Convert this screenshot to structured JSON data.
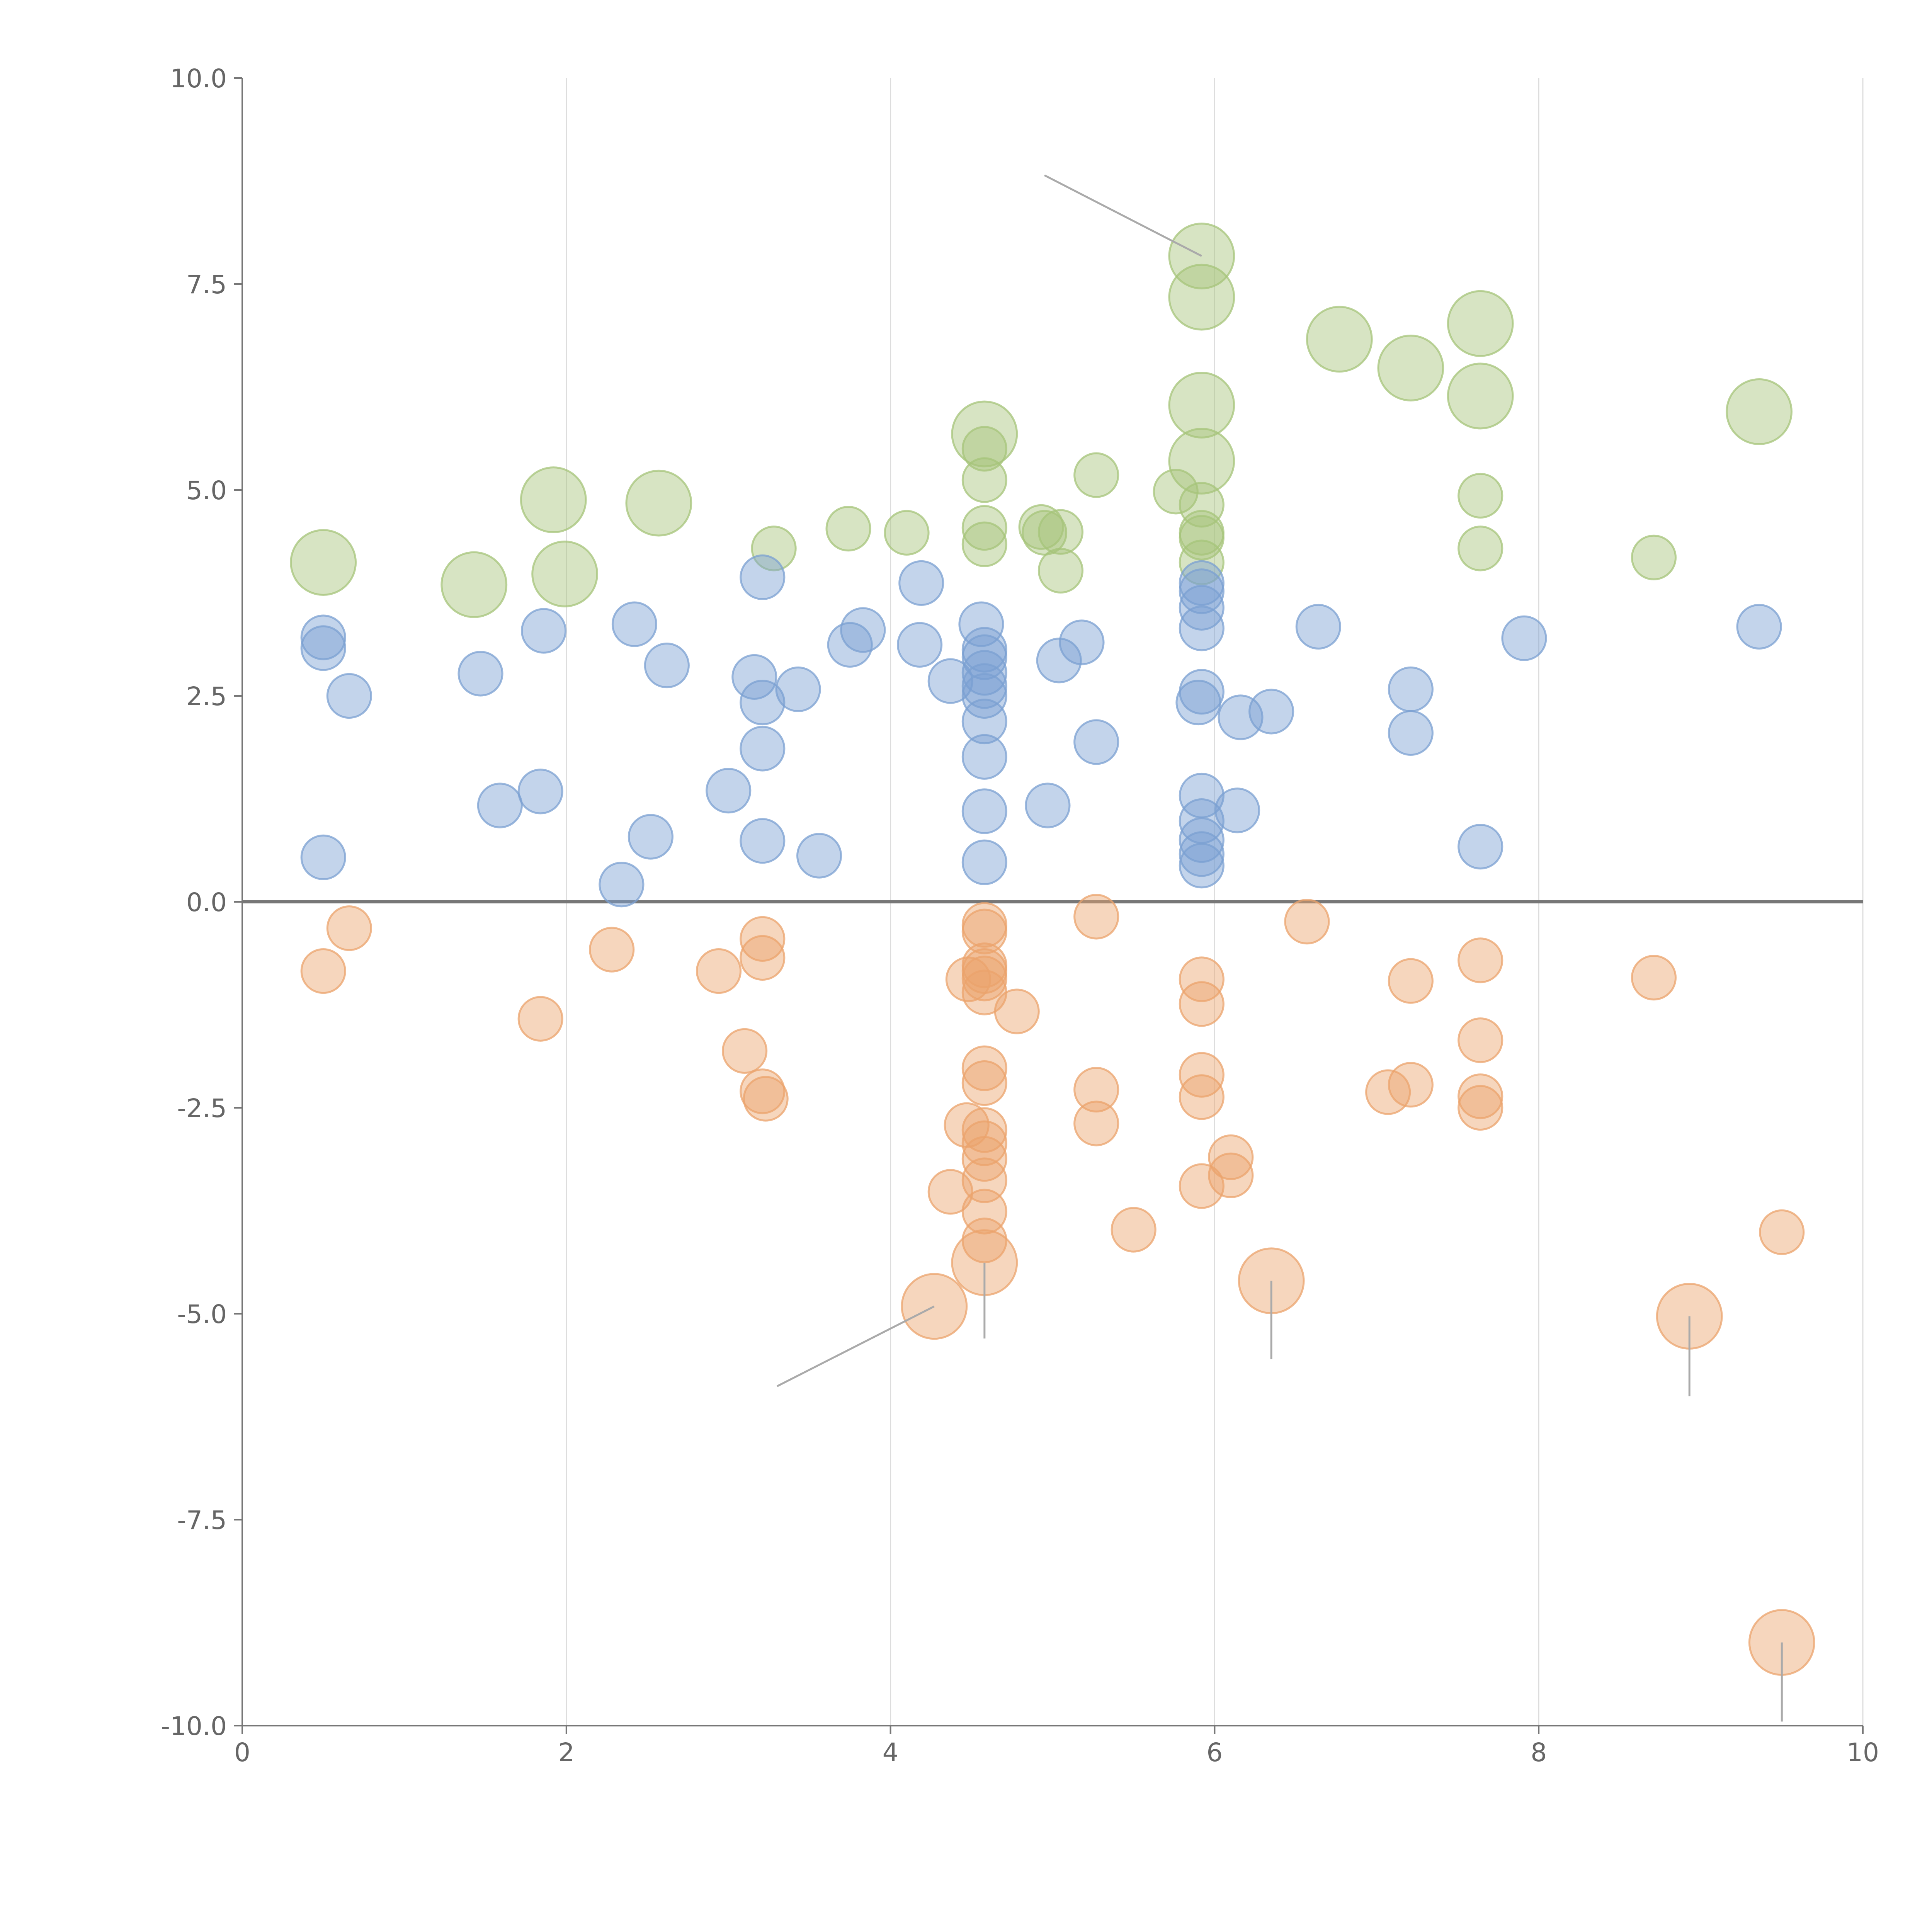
{
  "chart_data": {
    "type": "scatter",
    "xlim": [
      0,
      10
    ],
    "ylim": [
      -10,
      10
    ],
    "x_ticks": [
      "0",
      "2",
      "4",
      "6",
      "8",
      "10"
    ],
    "y_ticks": [
      "10.0",
      "7.5",
      "5.0",
      "2.5",
      "0.0",
      "-2.5",
      "-5.0",
      "-7.5",
      "-10.0"
    ],
    "x_tick_values": [
      0,
      2,
      4,
      6,
      8,
      10
    ],
    "y_tick_values": [
      10,
      7.5,
      5,
      2.5,
      0,
      -2.5,
      -5,
      -7.5,
      -10
    ],
    "grid": "vertical",
    "zero_line": true,
    "point_opacity": 0.45,
    "series": [
      {
        "color": "#a6c47a",
        "points": [
          [
            0.5,
            4.12,
            1.1
          ],
          [
            1.43,
            3.85,
            1.1
          ],
          [
            1.92,
            4.88,
            1.1
          ],
          [
            2.57,
            4.84,
            1.1
          ],
          [
            1.99,
            3.98,
            1.1
          ],
          [
            3.28,
            4.29,
            0.5
          ],
          [
            3.74,
            4.53,
            0.5
          ],
          [
            4.1,
            4.48,
            0.5
          ],
          [
            4.58,
            5.68,
            1.1
          ],
          [
            4.58,
            5.5,
            0.5
          ],
          [
            4.58,
            5.12,
            0.5
          ],
          [
            4.58,
            4.54,
            0.5
          ],
          [
            4.58,
            4.34,
            0.5
          ],
          [
            4.93,
            4.55,
            0.5
          ],
          [
            4.95,
            4.48,
            0.5
          ],
          [
            5.05,
            4.49,
            0.5
          ],
          [
            5.05,
            4.02,
            0.5
          ],
          [
            5.27,
            5.18,
            0.5
          ],
          [
            5.76,
            4.98,
            0.5
          ],
          [
            5.92,
            7.84,
            1.1
          ],
          [
            5.92,
            7.34,
            1.1
          ],
          [
            5.92,
            6.03,
            1.1
          ],
          [
            5.92,
            5.35,
            1.1
          ],
          [
            5.92,
            4.82,
            0.5
          ],
          [
            5.92,
            4.48,
            0.5
          ],
          [
            5.92,
            4.42,
            0.5
          ],
          [
            5.92,
            4.12,
            0.5
          ],
          [
            6.77,
            6.83,
            1.1
          ],
          [
            7.21,
            6.48,
            1.1
          ],
          [
            7.64,
            7.02,
            1.1
          ],
          [
            7.64,
            6.14,
            1.1
          ],
          [
            7.64,
            4.93,
            0.5
          ],
          [
            7.64,
            4.29,
            0.5
          ],
          [
            8.71,
            4.18,
            0.5
          ],
          [
            9.36,
            5.95,
            1.1
          ]
        ]
      },
      {
        "color": "#7ba0d2",
        "points": [
          [
            0.5,
            3.21,
            0.5
          ],
          [
            0.5,
            3.08,
            0.5
          ],
          [
            0.66,
            2.5,
            0.5
          ],
          [
            0.5,
            0.54,
            0.5
          ],
          [
            1.47,
            2.77,
            0.5
          ],
          [
            1.59,
            1.17,
            0.5
          ],
          [
            1.84,
            1.34,
            0.5
          ],
          [
            1.86,
            3.29,
            0.5
          ],
          [
            2.34,
            0.21,
            0.5
          ],
          [
            2.42,
            3.37,
            0.5
          ],
          [
            2.52,
            0.79,
            0.5
          ],
          [
            2.62,
            2.87,
            0.5
          ],
          [
            3.0,
            1.35,
            0.5
          ],
          [
            3.16,
            2.73,
            0.5
          ],
          [
            3.21,
            3.94,
            0.5
          ],
          [
            3.21,
            2.42,
            0.5
          ],
          [
            3.21,
            1.86,
            0.5
          ],
          [
            3.21,
            0.74,
            0.5
          ],
          [
            3.43,
            2.58,
            0.5
          ],
          [
            3.56,
            0.56,
            0.5
          ],
          [
            3.75,
            3.12,
            0.5
          ],
          [
            3.83,
            3.3,
            0.5
          ],
          [
            4.18,
            3.12,
            0.5
          ],
          [
            4.19,
            3.87,
            0.5
          ],
          [
            4.37,
            2.68,
            0.5
          ],
          [
            4.56,
            3.37,
            0.5
          ],
          [
            4.58,
            3.06,
            0.5
          ],
          [
            4.58,
            2.97,
            0.5
          ],
          [
            4.58,
            2.78,
            0.5
          ],
          [
            4.58,
            2.62,
            0.5
          ],
          [
            4.58,
            2.5,
            0.5
          ],
          [
            4.58,
            2.19,
            0.5
          ],
          [
            4.58,
            1.76,
            0.5
          ],
          [
            4.58,
            1.1,
            0.5
          ],
          [
            4.58,
            0.48,
            0.5
          ],
          [
            5.04,
            2.93,
            0.5
          ],
          [
            4.97,
            1.17,
            0.5
          ],
          [
            5.18,
            3.15,
            0.5
          ],
          [
            5.27,
            1.94,
            0.5
          ],
          [
            5.9,
            2.42,
            0.5
          ],
          [
            5.92,
            3.87,
            0.5
          ],
          [
            5.92,
            3.77,
            0.5
          ],
          [
            5.92,
            3.57,
            0.5
          ],
          [
            5.92,
            3.32,
            0.5
          ],
          [
            5.92,
            2.55,
            0.5
          ],
          [
            5.92,
            1.29,
            0.5
          ],
          [
            5.92,
            0.98,
            0.5
          ],
          [
            5.92,
            0.75,
            0.5
          ],
          [
            5.92,
            0.58,
            0.5
          ],
          [
            5.92,
            0.44,
            0.5
          ],
          [
            6.14,
            1.11,
            0.5
          ],
          [
            6.16,
            2.24,
            0.5
          ],
          [
            6.35,
            2.31,
            0.5
          ],
          [
            6.64,
            3.34,
            0.5
          ],
          [
            7.21,
            2.58,
            0.5
          ],
          [
            7.21,
            2.05,
            0.5
          ],
          [
            7.64,
            0.67,
            0.5
          ],
          [
            7.91,
            3.2,
            0.5
          ],
          [
            9.36,
            3.34,
            0.5
          ]
        ]
      },
      {
        "color": "#eba36c",
        "points": [
          [
            0.5,
            -0.84,
            0.5
          ],
          [
            0.66,
            -0.32,
            0.5
          ],
          [
            1.84,
            -1.42,
            0.5
          ],
          [
            2.28,
            -0.58,
            0.5
          ],
          [
            2.94,
            -0.84,
            0.5
          ],
          [
            3.1,
            -1.81,
            0.5
          ],
          [
            3.21,
            -0.45,
            0.5
          ],
          [
            3.21,
            -0.68,
            0.5
          ],
          [
            3.21,
            -2.3,
            0.5
          ],
          [
            3.23,
            -2.39,
            0.5
          ],
          [
            4.27,
            -4.91,
            1.1
          ],
          [
            4.37,
            -3.52,
            0.5
          ],
          [
            4.47,
            -2.71,
            0.5
          ],
          [
            4.48,
            -0.94,
            0.5
          ],
          [
            4.58,
            -0.28,
            0.5
          ],
          [
            4.58,
            -0.36,
            0.5
          ],
          [
            4.58,
            -0.77,
            0.5
          ],
          [
            4.58,
            -0.84,
            0.5
          ],
          [
            4.58,
            -0.93,
            0.5
          ],
          [
            4.58,
            -1.1,
            0.5
          ],
          [
            4.58,
            -2.02,
            0.5
          ],
          [
            4.58,
            -2.2,
            0.5
          ],
          [
            4.58,
            -2.77,
            0.5
          ],
          [
            4.58,
            -2.93,
            0.5
          ],
          [
            4.58,
            -3.12,
            0.5
          ],
          [
            4.58,
            -3.38,
            0.5
          ],
          [
            4.58,
            -3.76,
            0.5
          ],
          [
            4.58,
            -4.11,
            0.5
          ],
          [
            4.58,
            -4.38,
            1.1
          ],
          [
            4.78,
            -1.33,
            0.5
          ],
          [
            5.27,
            -0.18,
            0.5
          ],
          [
            5.27,
            -2.28,
            0.5
          ],
          [
            5.27,
            -2.69,
            0.5
          ],
          [
            5.5,
            -3.98,
            0.5
          ],
          [
            5.92,
            -0.94,
            0.5
          ],
          [
            5.92,
            -1.24,
            0.5
          ],
          [
            5.92,
            -2.1,
            0.5
          ],
          [
            5.92,
            -2.37,
            0.5
          ],
          [
            5.92,
            -3.45,
            0.5
          ],
          [
            6.1,
            -3.1,
            0.5
          ],
          [
            6.1,
            -3.32,
            0.5
          ],
          [
            6.35,
            -4.6,
            1.1
          ],
          [
            6.57,
            -0.24,
            0.5
          ],
          [
            7.07,
            -2.31,
            0.5
          ],
          [
            7.21,
            -0.96,
            0.5
          ],
          [
            7.21,
            -2.22,
            0.5
          ],
          [
            7.64,
            -0.71,
            0.5
          ],
          [
            7.64,
            -1.68,
            0.5
          ],
          [
            7.64,
            -2.36,
            0.5
          ],
          [
            7.64,
            -2.5,
            0.5
          ],
          [
            8.71,
            -0.92,
            0.5
          ],
          [
            8.93,
            -5.03,
            1.1
          ],
          [
            9.5,
            -4.01,
            0.5
          ],
          [
            9.5,
            -8.99,
            1.1
          ]
        ]
      }
    ],
    "leader_lines": [
      [
        5.92,
        7.84,
        4.95,
        8.82
      ],
      [
        4.27,
        -4.91,
        3.3,
        -5.88
      ],
      [
        4.58,
        -4.38,
        4.58,
        -5.3
      ],
      [
        6.35,
        -4.6,
        6.35,
        -5.55
      ],
      [
        8.93,
        -5.03,
        8.93,
        -6.0
      ],
      [
        9.5,
        -8.99,
        9.5,
        -9.95
      ]
    ]
  }
}
